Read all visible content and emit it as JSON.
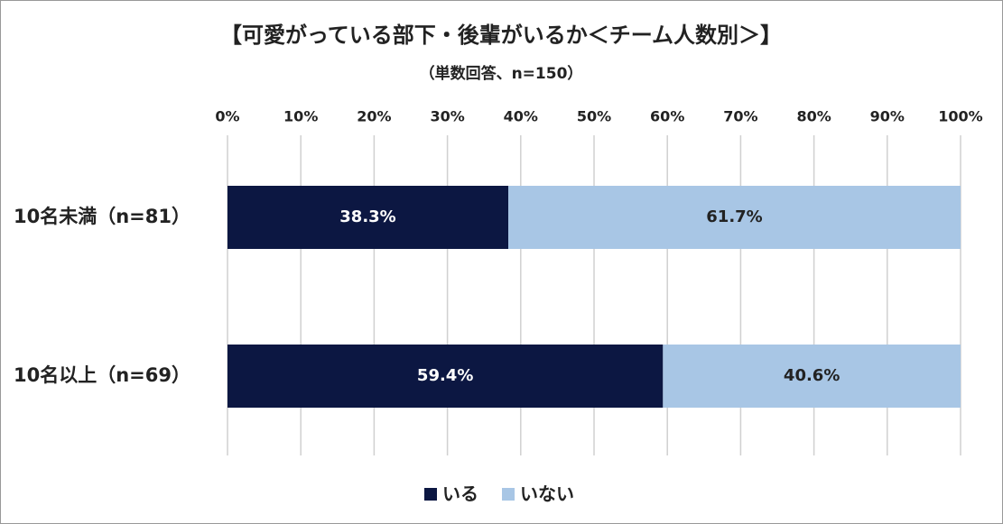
{
  "chart_data": {
    "type": "bar",
    "orientation": "horizontal",
    "stacked": true,
    "title": "【可愛がっている部下・後輩がいるか＜チーム人数別＞】",
    "subtitle": "（単数回答、n=150）",
    "categories": [
      "10名未満（n=81）",
      "10名以上（n=69）"
    ],
    "series": [
      {
        "name": "いる",
        "color": "#0c1742",
        "values": [
          38.3,
          59.4
        ],
        "value_labels": [
          "38.3%",
          "59.4%"
        ]
      },
      {
        "name": "いない",
        "color": "#a8c6e5",
        "values": [
          61.7,
          40.6
        ],
        "value_labels": [
          "61.7%",
          "40.6%"
        ]
      }
    ],
    "xlim": [
      0,
      100
    ],
    "xticks": [
      {
        "value": 0,
        "label": "0%"
      },
      {
        "value": 10,
        "label": "10%"
      },
      {
        "value": 20,
        "label": "20%"
      },
      {
        "value": 30,
        "label": "30%"
      },
      {
        "value": 40,
        "label": "40%"
      },
      {
        "value": 50,
        "label": "50%"
      },
      {
        "value": 60,
        "label": "60%"
      },
      {
        "value": 70,
        "label": "70%"
      },
      {
        "value": 80,
        "label": "80%"
      },
      {
        "value": 90,
        "label": "90%"
      },
      {
        "value": 100,
        "label": "100%"
      }
    ],
    "grid": true,
    "legend": "bottom"
  }
}
